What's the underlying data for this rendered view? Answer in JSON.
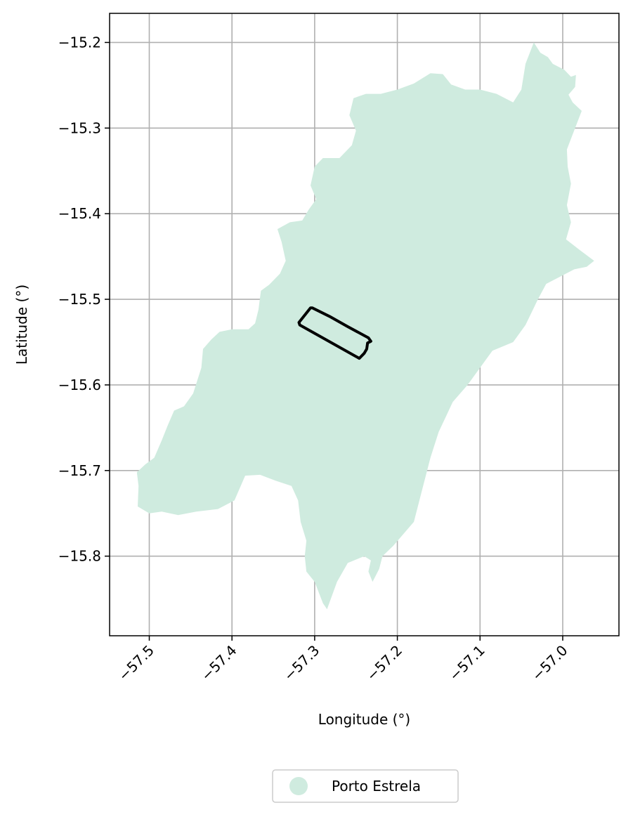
{
  "chart_data": {
    "type": "map",
    "title": "",
    "xlabel": "Longitude (°)",
    "ylabel": "Latitude (°)",
    "xlim": [
      -57.548,
      -56.932
    ],
    "ylim": [
      -15.893,
      -15.166
    ],
    "xticks": [
      -57.5,
      -57.4,
      -57.3,
      -57.2,
      -57.1,
      -57.0
    ],
    "yticks": [
      -15.2,
      -15.3,
      -15.4,
      -15.5,
      -15.6,
      -15.7,
      -15.8
    ],
    "xtick_labels": [
      "−57.5",
      "−57.4",
      "−57.3",
      "−57.2",
      "−57.1",
      "−57.0"
    ],
    "ytick_labels": [
      "−15.2",
      "−15.3",
      "−15.4",
      "−15.5",
      "−15.6",
      "−15.7",
      "−15.8"
    ],
    "grid": true,
    "legend": {
      "placement": "bottom-center",
      "entries": [
        {
          "label": "Porto Estrela",
          "color": "#cfebdf"
        }
      ]
    },
    "series": [
      {
        "name": "Porto Estrela",
        "kind": "polygon",
        "color": "#cfebdf",
        "coordinates": [
          [
            -57.035,
            -15.2
          ],
          [
            -57.027,
            -15.212
          ],
          [
            -57.018,
            -15.217
          ],
          [
            -57.012,
            -15.225
          ],
          [
            -56.998,
            -15.232
          ],
          [
            -56.99,
            -15.24
          ],
          [
            -56.984,
            -15.238
          ],
          [
            -56.985,
            -15.252
          ],
          [
            -56.993,
            -15.261
          ],
          [
            -56.988,
            -15.27
          ],
          [
            -56.977,
            -15.28
          ],
          [
            -56.985,
            -15.3
          ],
          [
            -56.995,
            -15.325
          ],
          [
            -56.994,
            -15.345
          ],
          [
            -56.99,
            -15.365
          ],
          [
            -56.995,
            -15.39
          ],
          [
            -56.99,
            -15.41
          ],
          [
            -56.996,
            -15.43
          ],
          [
            -56.98,
            -15.442
          ],
          [
            -56.962,
            -15.455
          ],
          [
            -56.971,
            -15.462
          ],
          [
            -56.986,
            -15.465
          ],
          [
            -57.0,
            -15.472
          ],
          [
            -57.02,
            -15.482
          ],
          [
            -57.03,
            -15.5
          ],
          [
            -57.045,
            -15.53
          ],
          [
            -57.06,
            -15.55
          ],
          [
            -57.085,
            -15.56
          ],
          [
            -57.1,
            -15.58
          ],
          [
            -57.115,
            -15.6
          ],
          [
            -57.133,
            -15.62
          ],
          [
            -57.15,
            -15.655
          ],
          [
            -57.16,
            -15.685
          ],
          [
            -57.172,
            -15.73
          ],
          [
            -57.18,
            -15.76
          ],
          [
            -57.205,
            -15.788
          ],
          [
            -57.218,
            -15.8
          ],
          [
            -57.222,
            -15.815
          ],
          [
            -57.23,
            -15.83
          ],
          [
            -57.235,
            -15.818
          ],
          [
            -57.232,
            -15.805
          ],
          [
            -57.24,
            -15.8
          ],
          [
            -57.26,
            -15.808
          ],
          [
            -57.273,
            -15.83
          ],
          [
            -57.285,
            -15.862
          ],
          [
            -57.29,
            -15.855
          ],
          [
            -57.3,
            -15.83
          ],
          [
            -57.31,
            -15.818
          ],
          [
            -57.312,
            -15.8
          ],
          [
            -57.31,
            -15.782
          ],
          [
            -57.317,
            -15.76
          ],
          [
            -57.32,
            -15.735
          ],
          [
            -57.328,
            -15.718
          ],
          [
            -57.347,
            -15.712
          ],
          [
            -57.366,
            -15.705
          ],
          [
            -57.384,
            -15.706
          ],
          [
            -57.397,
            -15.735
          ],
          [
            -57.417,
            -15.745
          ],
          [
            -57.443,
            -15.748
          ],
          [
            -57.465,
            -15.752
          ],
          [
            -57.485,
            -15.748
          ],
          [
            -57.5,
            -15.75
          ],
          [
            -57.514,
            -15.742
          ],
          [
            -57.513,
            -15.718
          ],
          [
            -57.515,
            -15.702
          ],
          [
            -57.505,
            -15.693
          ],
          [
            -57.494,
            -15.685
          ],
          [
            -57.485,
            -15.665
          ],
          [
            -57.478,
            -15.648
          ],
          [
            -57.47,
            -15.63
          ],
          [
            -57.458,
            -15.625
          ],
          [
            -57.447,
            -15.61
          ],
          [
            -57.437,
            -15.58
          ],
          [
            -57.435,
            -15.558
          ],
          [
            -57.425,
            -15.547
          ],
          [
            -57.415,
            -15.538
          ],
          [
            -57.4,
            -15.535
          ],
          [
            -57.38,
            -15.535
          ],
          [
            -57.372,
            -15.528
          ],
          [
            -57.368,
            -15.512
          ],
          [
            -57.365,
            -15.49
          ],
          [
            -57.355,
            -15.483
          ],
          [
            -57.342,
            -15.47
          ],
          [
            -57.335,
            -15.455
          ],
          [
            -57.34,
            -15.433
          ],
          [
            -57.345,
            -15.418
          ],
          [
            -57.33,
            -15.41
          ],
          [
            -57.315,
            -15.408
          ],
          [
            -57.307,
            -15.395
          ],
          [
            -57.298,
            -15.383
          ],
          [
            -57.305,
            -15.367
          ],
          [
            -57.3,
            -15.345
          ],
          [
            -57.29,
            -15.335
          ],
          [
            -57.27,
            -15.335
          ],
          [
            -57.255,
            -15.32
          ],
          [
            -57.25,
            -15.303
          ],
          [
            -57.258,
            -15.285
          ],
          [
            -57.253,
            -15.265
          ],
          [
            -57.238,
            -15.26
          ],
          [
            -57.22,
            -15.26
          ],
          [
            -57.2,
            -15.255
          ],
          [
            -57.18,
            -15.248
          ],
          [
            -57.16,
            -15.236
          ],
          [
            -57.145,
            -15.237
          ],
          [
            -57.135,
            -15.249
          ],
          [
            -57.118,
            -15.255
          ],
          [
            -57.1,
            -15.255
          ],
          [
            -57.08,
            -15.26
          ],
          [
            -57.06,
            -15.27
          ],
          [
            -57.05,
            -15.255
          ],
          [
            -57.045,
            -15.225
          ],
          [
            -57.035,
            -15.2
          ]
        ]
      },
      {
        "name": "",
        "kind": "outline",
        "color": "#000000",
        "coordinates": [
          [
            -57.303,
            -15.51
          ],
          [
            -57.282,
            -15.52
          ],
          [
            -57.26,
            -15.532
          ],
          [
            -57.235,
            -15.545
          ],
          [
            -57.232,
            -15.549
          ],
          [
            -57.236,
            -15.551
          ],
          [
            -57.237,
            -15.558
          ],
          [
            -57.24,
            -15.563
          ],
          [
            -57.246,
            -15.569
          ],
          [
            -57.318,
            -15.53
          ],
          [
            -57.319,
            -15.527
          ],
          [
            -57.305,
            -15.51
          ],
          [
            -57.303,
            -15.51
          ]
        ]
      }
    ]
  }
}
